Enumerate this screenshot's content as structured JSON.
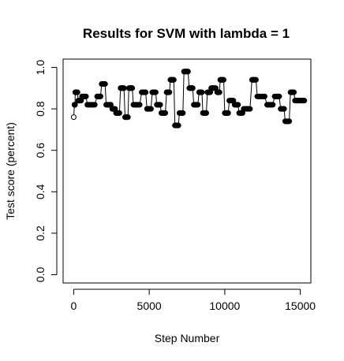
{
  "chart_data": {
    "type": "scatter",
    "title": "Results for SVM with lambda = 1",
    "xlabel": "Step Number",
    "ylabel": "Test score (percent)",
    "xlim": [
      -700,
      15700
    ],
    "ylim": [
      -0.04,
      1.04
    ],
    "xticks": [
      0,
      5000,
      10000,
      15000
    ],
    "xtick_labels": [
      "0",
      "5000",
      "10000",
      "15000"
    ],
    "yticks": [
      0.0,
      0.2,
      0.4,
      0.6,
      0.8,
      1.0
    ],
    "ytick_labels": [
      "0.0",
      "0.2",
      "0.4",
      "0.6",
      "0.8",
      "1.0"
    ],
    "grid": false,
    "legend": "none",
    "point_style": "open-circle",
    "connect_points": true,
    "points_per_segment": 10,
    "segments": [
      [
        0,
        0.76
      ],
      [
        50,
        0.82
      ],
      [
        100,
        0.88
      ],
      [
        300,
        0.84
      ],
      [
        550,
        0.86
      ],
      [
        900,
        0.82
      ],
      [
        1550,
        0.86
      ],
      [
        1850,
        0.92
      ],
      [
        2150,
        0.82
      ],
      [
        2550,
        0.8
      ],
      [
        2800,
        0.78
      ],
      [
        3100,
        0.9
      ],
      [
        3400,
        0.76
      ],
      [
        3650,
        0.9
      ],
      [
        3950,
        0.82
      ],
      [
        4500,
        0.88
      ],
      [
        4850,
        0.8
      ],
      [
        5200,
        0.88
      ],
      [
        5500,
        0.82
      ],
      [
        5800,
        0.78
      ],
      [
        6150,
        0.88
      ],
      [
        6400,
        0.94
      ],
      [
        6700,
        0.72
      ],
      [
        7000,
        0.78
      ],
      [
        7300,
        0.98
      ],
      [
        7650,
        0.9
      ],
      [
        7950,
        0.82
      ],
      [
        8300,
        0.88
      ],
      [
        8550,
        0.78
      ],
      [
        8850,
        0.88
      ],
      [
        9100,
        0.9
      ],
      [
        9500,
        0.88
      ],
      [
        9700,
        0.94
      ],
      [
        10000,
        0.78
      ],
      [
        10300,
        0.84
      ],
      [
        10650,
        0.82
      ],
      [
        10950,
        0.78
      ],
      [
        11250,
        0.8
      ],
      [
        11800,
        0.94
      ],
      [
        12150,
        0.86
      ],
      [
        12800,
        0.82
      ],
      [
        13300,
        0.86
      ],
      [
        13700,
        0.8
      ],
      [
        14000,
        0.74
      ],
      [
        14350,
        0.88
      ],
      [
        14650,
        0.84
      ],
      [
        15000,
        0.84
      ]
    ]
  }
}
